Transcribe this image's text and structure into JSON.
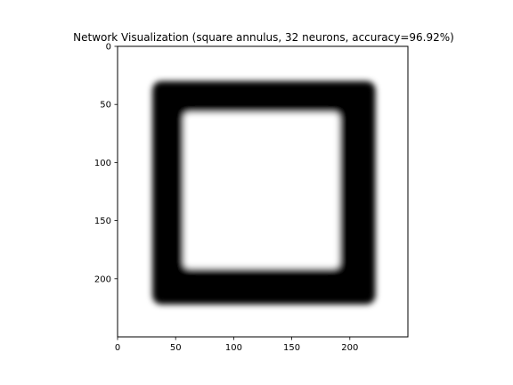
{
  "chart_data": {
    "type": "heatmap",
    "title": "Network Visualization (square annulus, 32 neurons, accuracy=96.92%)",
    "xlabel": "",
    "ylabel": "",
    "xlim": [
      0,
      250
    ],
    "ylim": [
      250,
      0
    ],
    "x_ticks": [
      0,
      50,
      100,
      150,
      200
    ],
    "y_ticks": [
      0,
      50,
      100,
      150,
      200
    ],
    "grid": false,
    "colormap": "gray",
    "value_range": [
      0,
      1
    ],
    "background_value": 1.0,
    "shape": "square annulus",
    "annulus_value": 0.0,
    "outer_square": {
      "x": [
        30,
        222
      ],
      "y": [
        30,
        222
      ]
    },
    "inner_square": {
      "x": [
        57,
        191
      ],
      "y": [
        57,
        191
      ]
    },
    "edge_blur_data_units": 5,
    "colors": {
      "high": "#ffffff",
      "low": "#000000",
      "axes": "#000000"
    }
  }
}
